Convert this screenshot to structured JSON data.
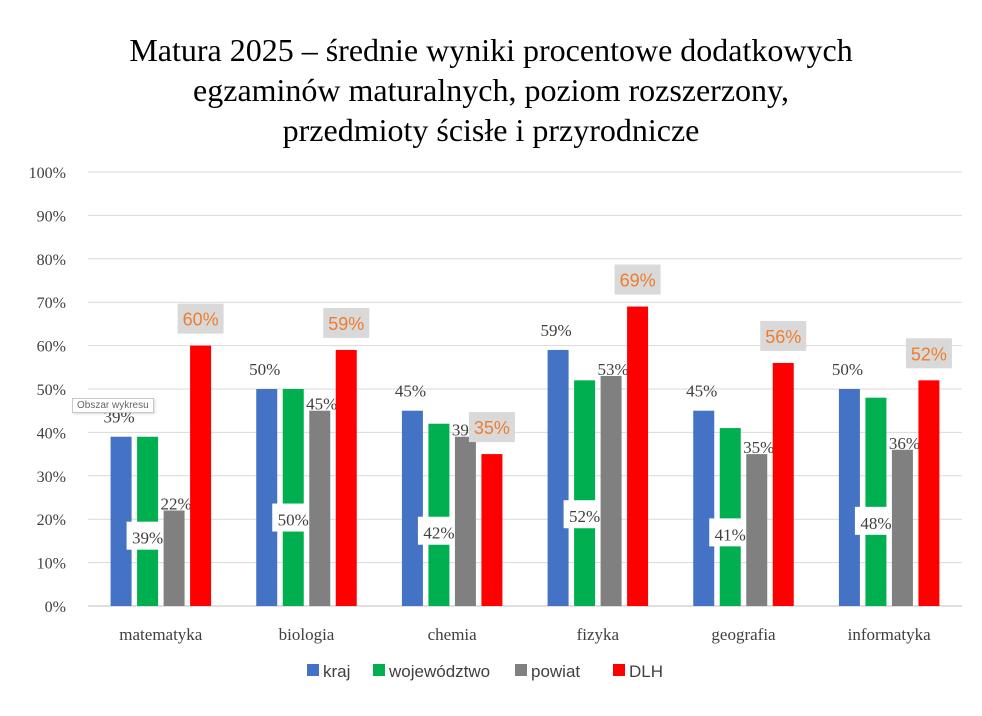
{
  "chart_data": {
    "type": "bar",
    "title": [
      "Matura 2025 – średnie wyniki procentowe dodatkowych",
      "egzaminów maturalnych, poziom rozszerzony,",
      "przedmioty ścisłe i przyrodnicze"
    ],
    "categories": [
      "matematyka",
      "biologia",
      "chemia",
      "fizyka",
      "geografia",
      "informatyka"
    ],
    "series": [
      {
        "name": "kraj",
        "color": "#4472C4",
        "values": [
          39,
          50,
          45,
          59,
          45,
          50
        ],
        "labels": [
          "39%",
          "50%",
          "45%",
          "59%",
          "45%",
          "50%"
        ]
      },
      {
        "name": "województwo",
        "color": "#00B050",
        "values": [
          39,
          50,
          42,
          52,
          41,
          48
        ],
        "labels": [
          "39%",
          "50%",
          "42%",
          "52%",
          "41%",
          "48%"
        ]
      },
      {
        "name": "powiat",
        "color": "#808080",
        "values": [
          22,
          45,
          39,
          53,
          35,
          36
        ],
        "labels": [
          "22%",
          "45%",
          "39%",
          "53%",
          "35%",
          "36%"
        ]
      },
      {
        "name": "DLH",
        "color": "#FF0000",
        "values": [
          60,
          59,
          35,
          69,
          56,
          52
        ],
        "labels": [
          "60%",
          "59%",
          "35%",
          "69%",
          "56%",
          "52%"
        ]
      }
    ],
    "ylim": [
      0,
      100
    ],
    "yticks": [
      "0%",
      "10%",
      "20%",
      "30%",
      "40%",
      "50%",
      "60%",
      "70%",
      "80%",
      "90%",
      "100%"
    ],
    "xlabel": "",
    "ylabel": "",
    "grid": true,
    "legend_position": "bottom"
  },
  "tooltip": "Obszar wykresu"
}
